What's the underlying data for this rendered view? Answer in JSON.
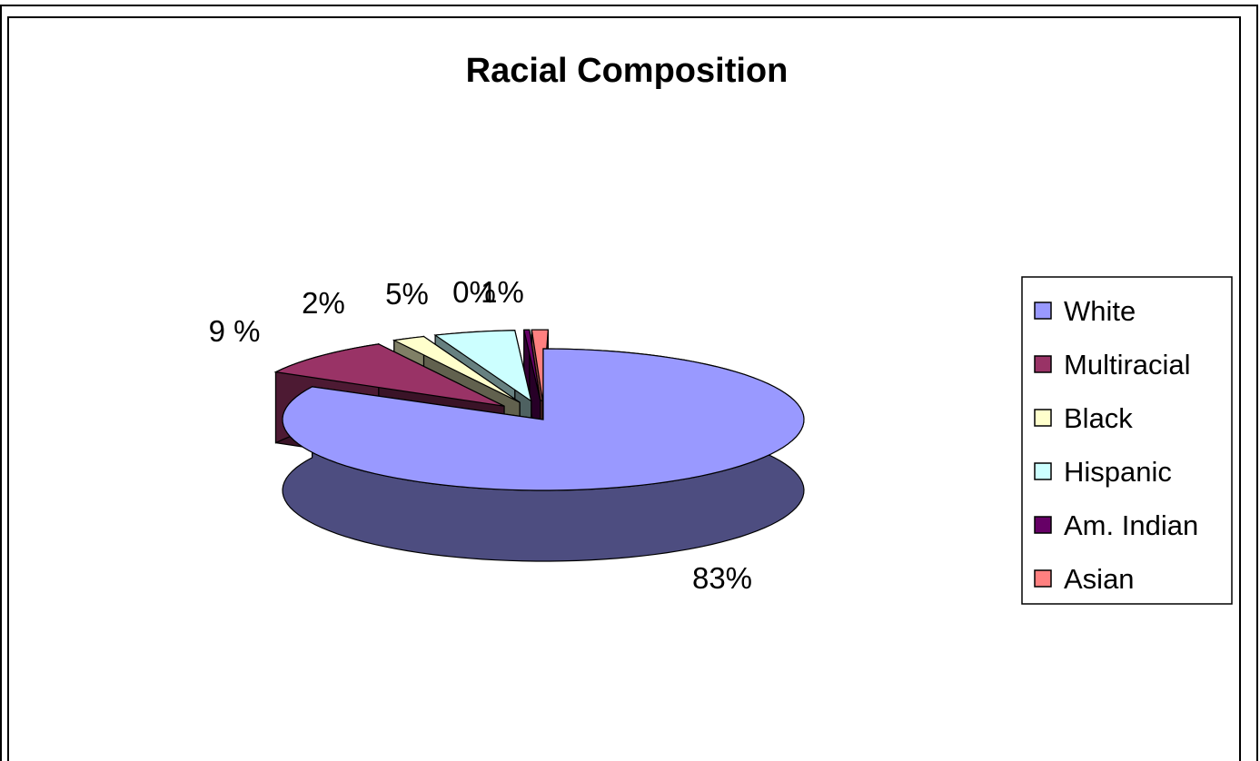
{
  "chart_data": {
    "type": "pie",
    "title": "Racial Composition",
    "legend_position": "right",
    "three_d": true,
    "slices": [
      {
        "name": "White",
        "value": 83,
        "label": "83%",
        "color": "#9999ff"
      },
      {
        "name": "Multiracial",
        "value": 9,
        "label": "9 %",
        "color": "#993366"
      },
      {
        "name": "Black",
        "value": 2,
        "label": "2%",
        "color": "#ffffcc"
      },
      {
        "name": "Hispanic",
        "value": 5,
        "label": "5%",
        "color": "#ccffff"
      },
      {
        "name": "Am. Indian",
        "value": 0,
        "label": "0%",
        "color": "#660066"
      },
      {
        "name": "Asian",
        "value": 1,
        "label": "1%",
        "color": "#ff8080"
      }
    ]
  }
}
